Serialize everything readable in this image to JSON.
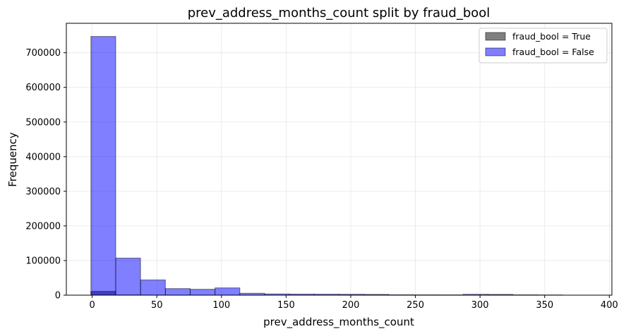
{
  "chart_data": {
    "type": "bar",
    "title": "prev_address_months_count split by fraud_bool",
    "xlabel": "prev_address_months_count",
    "ylabel": "Frequency",
    "xlim": [
      -20,
      402
    ],
    "ylim": [
      0,
      785000
    ],
    "xticks": [
      0,
      50,
      100,
      150,
      200,
      250,
      300,
      350,
      400
    ],
    "yticks": [
      0,
      100000,
      200000,
      300000,
      400000,
      500000,
      600000,
      700000
    ],
    "grid": true,
    "legend_position": "top-right",
    "bin_edges": [
      -1,
      18.2,
      37.4,
      56.6,
      75.8,
      95.0,
      114.2,
      133.4,
      152.6,
      171.8,
      191.0,
      210.2,
      229.4,
      248.6,
      267.8,
      287.0,
      306.2,
      325.4,
      344.6,
      363.8,
      383.0
    ],
    "series": [
      {
        "name": "fraud_bool = True",
        "color": "#000000",
        "opacity": 0.5,
        "values": [
          11000,
          600,
          300,
          150,
          100,
          100,
          30,
          20,
          15,
          15,
          10,
          10,
          5,
          5,
          5,
          5,
          5,
          5,
          3,
          0
        ]
      },
      {
        "name": "fraud_bool = False",
        "color": "#0000ff",
        "opacity": 0.5,
        "values": [
          747000,
          107000,
          44000,
          19000,
          17000,
          21000,
          5500,
          3500,
          3000,
          2800,
          2600,
          2200,
          1200,
          1000,
          900,
          2500,
          2200,
          1000,
          600,
          0
        ]
      }
    ]
  }
}
